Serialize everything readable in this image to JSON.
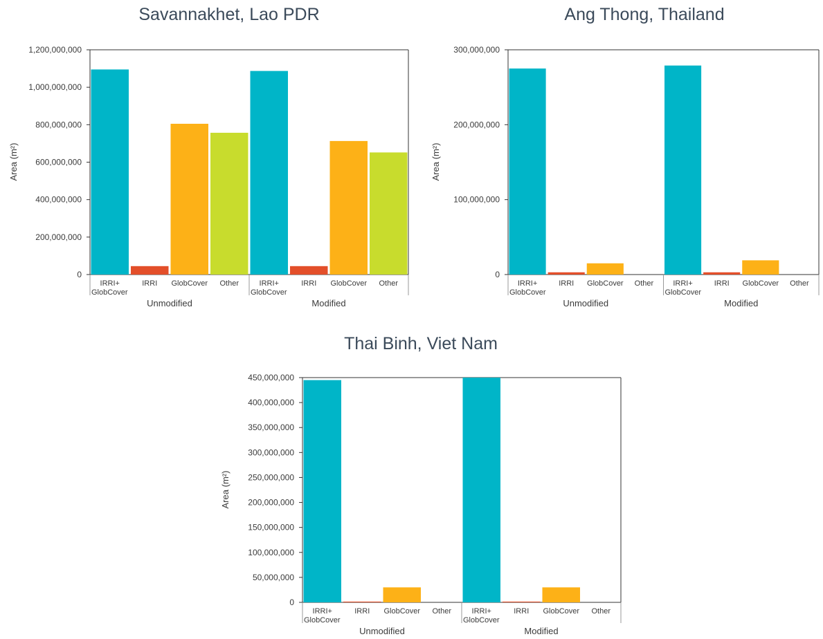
{
  "colors": {
    "IRRI+GlobCover": "#00b5c8",
    "IRRI": "#e34f2a",
    "GlobCover": "#fdb117",
    "Other": "#c8dc2d"
  },
  "chart_data": [
    {
      "type": "bar",
      "title": "Savannakhet, Lao PDR",
      "ylabel": "Area (m²)",
      "ylim": [
        0,
        1200000000
      ],
      "yticks": [
        0,
        200000000,
        400000000,
        600000000,
        800000000,
        1000000000,
        1200000000
      ],
      "ytick_labels": [
        "0",
        "200,000,000",
        "400,000,000",
        "600,000,000",
        "800,000,000",
        "1,000,000,000",
        "1,200,000,000"
      ],
      "groups": [
        "Unmodified",
        "Modified"
      ],
      "categories": [
        "IRRI+ GlobCover",
        "IRRI",
        "GlobCover",
        "Other"
      ],
      "values": [
        [
          1095000000,
          45000000,
          805000000,
          757000000
        ],
        [
          1087000000,
          45000000,
          713000000,
          652000000
        ]
      ]
    },
    {
      "type": "bar",
      "title": "Ang Thong, Thailand",
      "ylabel": "Area (m²)",
      "ylim": [
        0,
        300000000
      ],
      "yticks": [
        0,
        100000000,
        200000000,
        300000000
      ],
      "ytick_labels": [
        "0",
        "100,000,000",
        "200,000,000",
        "300,000,000"
      ],
      "groups": [
        "Unmodified",
        "Modified"
      ],
      "categories": [
        "IRRI+ GlobCover",
        "IRRI",
        "GlobCover",
        "Other"
      ],
      "values": [
        [
          275000000,
          3000000,
          15000000,
          0
        ],
        [
          279000000,
          3000000,
          19000000,
          0
        ]
      ]
    },
    {
      "type": "bar",
      "title": "Thai Binh, Viet Nam",
      "ylabel": "Area (m²)",
      "ylim": [
        0,
        450000000
      ],
      "yticks": [
        0,
        50000000,
        100000000,
        150000000,
        200000000,
        250000000,
        300000000,
        350000000,
        400000000,
        450000000
      ],
      "ytick_labels": [
        "0",
        "50,000,000",
        "100,000,000",
        "150,000,000",
        "200,000,000",
        "250,000,000",
        "300,000,000",
        "350,000,000",
        "400,000,000",
        "450,000,000"
      ],
      "groups": [
        "Unmodified",
        "Modified"
      ],
      "categories": [
        "IRRI+ GlobCover",
        "IRRI",
        "GlobCover",
        "Other"
      ],
      "values": [
        [
          445000000,
          1500000,
          30000000,
          0
        ],
        [
          450000000,
          1500000,
          30000000,
          0
        ]
      ]
    }
  ]
}
